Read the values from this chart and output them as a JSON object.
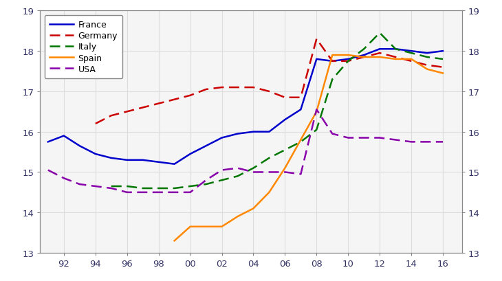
{
  "France": {
    "x": [
      1991,
      1992,
      1993,
      1994,
      1995,
      1996,
      1997,
      1998,
      1999,
      2000,
      2001,
      2002,
      2003,
      2004,
      2005,
      2006,
      2007,
      2008,
      2009,
      2010,
      2011,
      2012,
      2013,
      2014,
      2015,
      2016
    ],
    "y": [
      15.75,
      15.9,
      15.65,
      15.45,
      15.35,
      15.3,
      15.3,
      15.25,
      15.2,
      15.45,
      15.65,
      15.85,
      15.95,
      16.0,
      16.0,
      16.3,
      16.55,
      17.8,
      17.75,
      17.8,
      17.9,
      18.05,
      18.05,
      18.0,
      17.95,
      18.0
    ],
    "color": "#0000cc",
    "linestyle": "solid",
    "linewidth": 1.8
  },
  "Germany": {
    "x": [
      1991,
      1992,
      1993,
      1994,
      1995,
      1996,
      1997,
      1998,
      1999,
      2000,
      2001,
      2002,
      2003,
      2004,
      2005,
      2006,
      2007,
      2008,
      2009,
      2010,
      2011,
      2012,
      2013,
      2014,
      2015,
      2016
    ],
    "y": [
      null,
      null,
      null,
      16.2,
      16.4,
      16.5,
      16.6,
      16.7,
      16.8,
      16.9,
      17.05,
      17.1,
      17.1,
      17.1,
      17.0,
      16.85,
      16.85,
      18.3,
      17.75,
      17.75,
      17.85,
      17.95,
      17.85,
      17.75,
      17.65,
      17.6
    ],
    "color": "#cc0000",
    "linestyle": "dashed",
    "linewidth": 1.8
  },
  "Italy": {
    "x": [
      1991,
      1992,
      1993,
      1994,
      1995,
      1996,
      1997,
      1998,
      1999,
      2000,
      2001,
      2002,
      2003,
      2004,
      2005,
      2006,
      2007,
      2008,
      2009,
      2010,
      2011,
      2012,
      2013,
      2014,
      2015,
      2016
    ],
    "y": [
      null,
      null,
      null,
      null,
      14.65,
      14.65,
      14.6,
      14.6,
      14.6,
      14.65,
      14.7,
      14.8,
      14.9,
      15.1,
      15.35,
      15.55,
      15.75,
      16.05,
      17.3,
      17.75,
      18.05,
      18.45,
      18.05,
      17.95,
      17.85,
      17.8
    ],
    "color": "#007700",
    "linestyle": "dashed",
    "linewidth": 1.8
  },
  "Spain": {
    "x": [
      1999,
      2000,
      2001,
      2002,
      2003,
      2004,
      2005,
      2006,
      2007,
      2008,
      2009,
      2010,
      2011,
      2012,
      2013,
      2014,
      2015,
      2016
    ],
    "y": [
      13.3,
      13.65,
      13.65,
      13.65,
      13.9,
      14.1,
      14.5,
      15.1,
      15.8,
      16.5,
      17.9,
      17.9,
      17.85,
      17.85,
      17.8,
      17.8,
      17.55,
      17.45
    ],
    "color": "#ff8800",
    "linestyle": "solid",
    "linewidth": 1.8
  },
  "USA": {
    "x": [
      1991,
      1992,
      1993,
      1994,
      1995,
      1996,
      1997,
      1998,
      1999,
      2000,
      2001,
      2002,
      2003,
      2004,
      2005,
      2006,
      2007,
      2008,
      2009,
      2010,
      2011,
      2012,
      2013,
      2014,
      2015,
      2016
    ],
    "y": [
      15.05,
      14.85,
      14.7,
      14.65,
      14.6,
      14.5,
      14.5,
      14.5,
      14.5,
      14.5,
      14.8,
      15.05,
      15.1,
      15.0,
      15.0,
      15.0,
      14.95,
      16.55,
      15.95,
      15.85,
      15.85,
      15.85,
      15.8,
      15.75,
      15.75,
      15.75
    ],
    "color": "#8800aa",
    "linestyle": "dashed",
    "linewidth": 1.8
  },
  "ylim": [
    13,
    19
  ],
  "yticks": [
    13,
    14,
    15,
    16,
    17,
    18,
    19
  ],
  "xtick_labels": [
    "92",
    "94",
    "96",
    "98",
    "00",
    "02",
    "04",
    "06",
    "08",
    "10",
    "12",
    "14",
    "16"
  ],
  "xtick_values": [
    1992,
    1994,
    1996,
    1998,
    2000,
    2002,
    2004,
    2006,
    2008,
    2010,
    2012,
    2014,
    2016
  ],
  "xlim": [
    1990.5,
    2017.2
  ],
  "background_color": "#ffffff",
  "plot_bg_color": "#f5f5f5",
  "grid_color": "#dddddd",
  "legend_order": [
    "France",
    "Germany",
    "Italy",
    "Spain",
    "USA"
  ]
}
